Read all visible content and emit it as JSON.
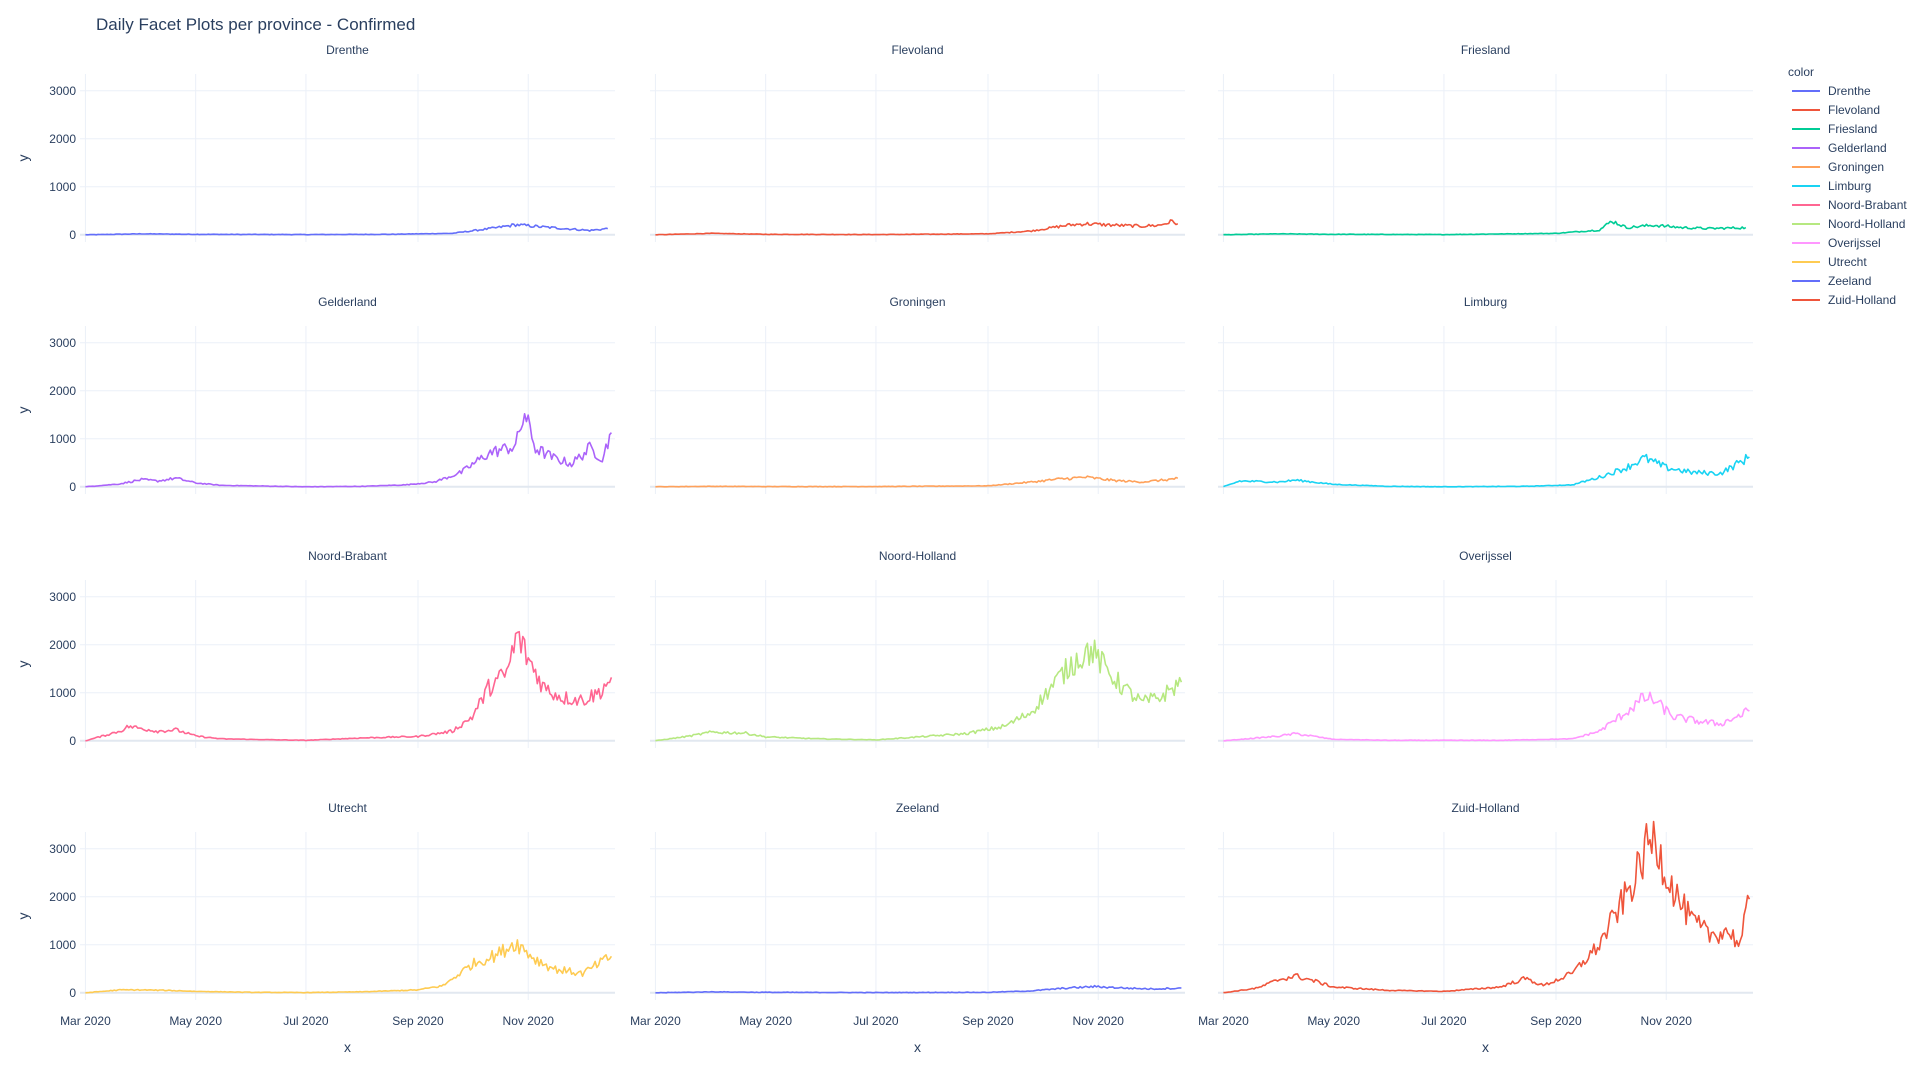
{
  "chart_data": {
    "type": "line",
    "title": "Daily Facet Plots per province - Confirmed",
    "xlabel": "x",
    "ylabel": "y",
    "x_range": [
      "2020-02-27",
      "2020-12-19"
    ],
    "x_ticks": [
      {
        "date": "2020-03-01",
        "label": "Mar 2020"
      },
      {
        "date": "2020-05-01",
        "label": "May 2020"
      },
      {
        "date": "2020-07-01",
        "label": "Jul 2020"
      },
      {
        "date": "2020-09-01",
        "label": "Sep 2020"
      },
      {
        "date": "2020-11-01",
        "label": "Nov 2020"
      }
    ],
    "y_range": [
      -150,
      3350
    ],
    "y_ticks": [
      0,
      1000,
      2000,
      3000
    ],
    "grid": true,
    "legend": {
      "title": "color",
      "placement": "right"
    },
    "facet_columns": 3,
    "series": [
      {
        "name": "Drenthe",
        "color": "#636efa",
        "points": [
          [
            "2020-03-01",
            0
          ],
          [
            "2020-04-01",
            20
          ],
          [
            "2020-05-01",
            10
          ],
          [
            "2020-07-01",
            5
          ],
          [
            "2020-08-15",
            10
          ],
          [
            "2020-09-20",
            30
          ],
          [
            "2020-10-15",
            150
          ],
          [
            "2020-10-25",
            210
          ],
          [
            "2020-11-10",
            160
          ],
          [
            "2020-11-25",
            120
          ],
          [
            "2020-12-05",
            90
          ],
          [
            "2020-12-15",
            130
          ]
        ]
      },
      {
        "name": "Flevoland",
        "color": "#ef553b",
        "points": [
          [
            "2020-03-01",
            0
          ],
          [
            "2020-04-01",
            30
          ],
          [
            "2020-05-01",
            10
          ],
          [
            "2020-07-01",
            5
          ],
          [
            "2020-09-01",
            20
          ],
          [
            "2020-09-25",
            80
          ],
          [
            "2020-10-15",
            200
          ],
          [
            "2020-10-25",
            230
          ],
          [
            "2020-11-10",
            200
          ],
          [
            "2020-11-25",
            180
          ],
          [
            "2020-12-05",
            200
          ],
          [
            "2020-12-12",
            280
          ],
          [
            "2020-12-15",
            230
          ]
        ]
      },
      {
        "name": "Friesland",
        "color": "#00cc96",
        "points": [
          [
            "2020-03-01",
            0
          ],
          [
            "2020-04-01",
            20
          ],
          [
            "2020-05-01",
            10
          ],
          [
            "2020-07-01",
            5
          ],
          [
            "2020-09-01",
            30
          ],
          [
            "2020-09-25",
            100
          ],
          [
            "2020-10-02",
            290
          ],
          [
            "2020-10-10",
            150
          ],
          [
            "2020-10-25",
            200
          ],
          [
            "2020-11-10",
            150
          ],
          [
            "2020-11-25",
            130
          ],
          [
            "2020-12-15",
            150
          ]
        ]
      },
      {
        "name": "Gelderland",
        "color": "#ab63fa",
        "points": [
          [
            "2020-03-01",
            0
          ],
          [
            "2020-03-20",
            60
          ],
          [
            "2020-04-01",
            150
          ],
          [
            "2020-04-10",
            120
          ],
          [
            "2020-04-20",
            180
          ],
          [
            "2020-05-01",
            80
          ],
          [
            "2020-05-15",
            30
          ],
          [
            "2020-06-01",
            20
          ],
          [
            "2020-07-01",
            0
          ],
          [
            "2020-08-01",
            10
          ],
          [
            "2020-08-25",
            40
          ],
          [
            "2020-09-10",
            100
          ],
          [
            "2020-09-25",
            300
          ],
          [
            "2020-10-10",
            700
          ],
          [
            "2020-10-25",
            850
          ],
          [
            "2020-10-30",
            1530
          ],
          [
            "2020-11-05",
            800
          ],
          [
            "2020-11-15",
            600
          ],
          [
            "2020-11-25",
            480
          ],
          [
            "2020-12-05",
            800
          ],
          [
            "2020-12-12",
            600
          ],
          [
            "2020-12-17",
            1130
          ]
        ]
      },
      {
        "name": "Groningen",
        "color": "#ffa15a",
        "points": [
          [
            "2020-03-01",
            0
          ],
          [
            "2020-04-01",
            10
          ],
          [
            "2020-05-01",
            5
          ],
          [
            "2020-07-01",
            5
          ],
          [
            "2020-09-01",
            20
          ],
          [
            "2020-09-25",
            100
          ],
          [
            "2020-10-10",
            160
          ],
          [
            "2020-10-25",
            200
          ],
          [
            "2020-11-10",
            130
          ],
          [
            "2020-11-25",
            100
          ],
          [
            "2020-12-10",
            150
          ],
          [
            "2020-12-15",
            180
          ]
        ]
      },
      {
        "name": "Limburg",
        "color": "#19d3f3",
        "points": [
          [
            "2020-03-01",
            0
          ],
          [
            "2020-03-10",
            120
          ],
          [
            "2020-04-01",
            100
          ],
          [
            "2020-04-10",
            140
          ],
          [
            "2020-05-01",
            50
          ],
          [
            "2020-06-01",
            10
          ],
          [
            "2020-07-01",
            0
          ],
          [
            "2020-08-15",
            10
          ],
          [
            "2020-09-10",
            40
          ],
          [
            "2020-09-25",
            200
          ],
          [
            "2020-10-10",
            400
          ],
          [
            "2020-10-20",
            600
          ],
          [
            "2020-11-01",
            400
          ],
          [
            "2020-11-15",
            300
          ],
          [
            "2020-12-01",
            280
          ],
          [
            "2020-12-17",
            620
          ]
        ]
      },
      {
        "name": "Noord-Brabant",
        "color": "#ff6692",
        "points": [
          [
            "2020-03-01",
            0
          ],
          [
            "2020-03-20",
            200
          ],
          [
            "2020-03-25",
            300
          ],
          [
            "2020-04-10",
            200
          ],
          [
            "2020-04-20",
            230
          ],
          [
            "2020-05-01",
            100
          ],
          [
            "2020-05-15",
            40
          ],
          [
            "2020-06-15",
            20
          ],
          [
            "2020-07-01",
            10
          ],
          [
            "2020-08-01",
            60
          ],
          [
            "2020-09-01",
            90
          ],
          [
            "2020-09-20",
            200
          ],
          [
            "2020-10-01",
            500
          ],
          [
            "2020-10-10",
            1100
          ],
          [
            "2020-10-20",
            1400
          ],
          [
            "2020-10-26",
            2200
          ],
          [
            "2020-11-01",
            1700
          ],
          [
            "2020-11-10",
            1100
          ],
          [
            "2020-11-20",
            900
          ],
          [
            "2020-12-01",
            850
          ],
          [
            "2020-12-10",
            1000
          ],
          [
            "2020-12-17",
            1320
          ]
        ]
      },
      {
        "name": "Noord-Holland",
        "color": "#b6e880",
        "points": [
          [
            "2020-03-01",
            0
          ],
          [
            "2020-03-20",
            100
          ],
          [
            "2020-04-01",
            180
          ],
          [
            "2020-04-20",
            160
          ],
          [
            "2020-05-01",
            80
          ],
          [
            "2020-06-01",
            40
          ],
          [
            "2020-07-01",
            20
          ],
          [
            "2020-08-01",
            100
          ],
          [
            "2020-08-20",
            150
          ],
          [
            "2020-09-10",
            300
          ],
          [
            "2020-09-25",
            600
          ],
          [
            "2020-10-10",
            1300
          ],
          [
            "2020-10-20",
            1700
          ],
          [
            "2020-10-28",
            1900
          ],
          [
            "2020-11-05",
            1500
          ],
          [
            "2020-11-15",
            1100
          ],
          [
            "2020-11-25",
            800
          ],
          [
            "2020-12-05",
            900
          ],
          [
            "2020-12-17",
            1220
          ]
        ]
      },
      {
        "name": "Overijssel",
        "color": "#ff97ff",
        "points": [
          [
            "2020-03-01",
            0
          ],
          [
            "2020-03-20",
            60
          ],
          [
            "2020-04-01",
            100
          ],
          [
            "2020-04-10",
            150
          ],
          [
            "2020-05-01",
            30
          ],
          [
            "2020-06-01",
            10
          ],
          [
            "2020-08-01",
            10
          ],
          [
            "2020-09-10",
            40
          ],
          [
            "2020-09-25",
            200
          ],
          [
            "2020-10-10",
            600
          ],
          [
            "2020-10-20",
            900
          ],
          [
            "2020-10-25",
            850
          ],
          [
            "2020-11-05",
            500
          ],
          [
            "2020-11-20",
            400
          ],
          [
            "2020-12-01",
            350
          ],
          [
            "2020-12-17",
            620
          ]
        ]
      },
      {
        "name": "Utrecht",
        "color": "#fecb52",
        "points": [
          [
            "2020-03-01",
            0
          ],
          [
            "2020-03-20",
            60
          ],
          [
            "2020-04-01",
            60
          ],
          [
            "2020-04-15",
            50
          ],
          [
            "2020-05-01",
            30
          ],
          [
            "2020-06-01",
            10
          ],
          [
            "2020-07-01",
            5
          ],
          [
            "2020-08-01",
            20
          ],
          [
            "2020-09-01",
            60
          ],
          [
            "2020-09-15",
            150
          ],
          [
            "2020-10-01",
            600
          ],
          [
            "2020-10-15",
            800
          ],
          [
            "2020-10-25",
            1050
          ],
          [
            "2020-11-05",
            700
          ],
          [
            "2020-11-15",
            500
          ],
          [
            "2020-12-01",
            400
          ],
          [
            "2020-12-17",
            760
          ]
        ]
      },
      {
        "name": "Zeeland",
        "color": "#636efa",
        "points": [
          [
            "2020-03-01",
            0
          ],
          [
            "2020-04-01",
            20
          ],
          [
            "2020-05-01",
            10
          ],
          [
            "2020-07-01",
            5
          ],
          [
            "2020-09-01",
            10
          ],
          [
            "2020-09-25",
            40
          ],
          [
            "2020-10-15",
            100
          ],
          [
            "2020-10-30",
            130
          ],
          [
            "2020-11-15",
            100
          ],
          [
            "2020-12-01",
            80
          ],
          [
            "2020-12-17",
            100
          ]
        ]
      },
      {
        "name": "Zuid-Holland",
        "color": "#ef553b",
        "points": [
          [
            "2020-03-01",
            0
          ],
          [
            "2020-03-20",
            100
          ],
          [
            "2020-04-01",
            280
          ],
          [
            "2020-04-10",
            350
          ],
          [
            "2020-04-20",
            250
          ],
          [
            "2020-05-01",
            120
          ],
          [
            "2020-06-01",
            50
          ],
          [
            "2020-07-01",
            30
          ],
          [
            "2020-08-01",
            120
          ],
          [
            "2020-08-15",
            300
          ],
          [
            "2020-08-25",
            150
          ],
          [
            "2020-09-10",
            400
          ],
          [
            "2020-09-25",
            1000
          ],
          [
            "2020-10-05",
            1700
          ],
          [
            "2020-10-15",
            2400
          ],
          [
            "2020-10-22",
            3100
          ],
          [
            "2020-10-26",
            3200
          ],
          [
            "2020-11-01",
            2500
          ],
          [
            "2020-11-07",
            2000
          ],
          [
            "2020-11-15",
            1500
          ],
          [
            "2020-11-25",
            1200
          ],
          [
            "2020-12-05",
            1300
          ],
          [
            "2020-12-12",
            1000
          ],
          [
            "2020-12-17",
            1950
          ]
        ]
      }
    ]
  }
}
